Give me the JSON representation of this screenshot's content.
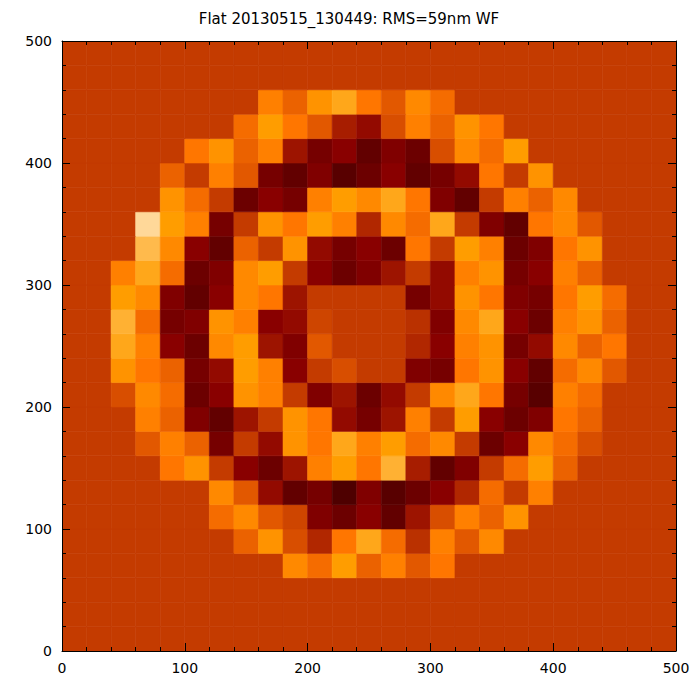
{
  "chart_data": {
    "type": "heatmap",
    "title": "Flat 20130515_130449: RMS=59nm WF",
    "x": [
      10,
      30,
      50,
      70,
      90,
      110,
      130,
      150,
      170,
      190,
      210,
      230,
      250,
      270,
      290,
      310,
      330,
      350,
      370,
      390,
      410,
      430,
      450,
      470,
      490
    ],
    "y": [
      10,
      30,
      50,
      70,
      90,
      110,
      130,
      150,
      170,
      190,
      210,
      230,
      250,
      270,
      290,
      310,
      330,
      350,
      370,
      390,
      410,
      430,
      450,
      470,
      490
    ],
    "z": [
      [
        0,
        0,
        0,
        0,
        0,
        0,
        0,
        0,
        0,
        0,
        0,
        0,
        0,
        0,
        0,
        0,
        0,
        0,
        0,
        0,
        0,
        0,
        0,
        0,
        0
      ],
      [
        0,
        0,
        0,
        0,
        0,
        0,
        0,
        0,
        0,
        0,
        0,
        0,
        0,
        0,
        0,
        0,
        0,
        0,
        0,
        0,
        0,
        0,
        0,
        0,
        0
      ],
      [
        0,
        0,
        0,
        0,
        0,
        0,
        0,
        0,
        0,
        0,
        0,
        0,
        0,
        0,
        0,
        0,
        0,
        0,
        0,
        0,
        0,
        0,
        0,
        0,
        0
      ],
      [
        0,
        0,
        0,
        0,
        0,
        0,
        0,
        0,
        0,
        40,
        25,
        50,
        20,
        35,
        15,
        30,
        0,
        0,
        0,
        0,
        0,
        0,
        0,
        0,
        0
      ],
      [
        0,
        0,
        0,
        0,
        0,
        0,
        0,
        20,
        45,
        10,
        -10,
        30,
        55,
        25,
        -5,
        35,
        15,
        40,
        0,
        0,
        0,
        0,
        0,
        0,
        0
      ],
      [
        0,
        0,
        0,
        0,
        0,
        0,
        25,
        40,
        15,
        5,
        -35,
        -45,
        -30,
        -50,
        -20,
        10,
        35,
        20,
        45,
        0,
        0,
        0,
        0,
        0,
        0
      ],
      [
        0,
        0,
        0,
        0,
        0,
        0,
        40,
        15,
        -25,
        -50,
        -40,
        -60,
        -35,
        -55,
        -45,
        -30,
        -10,
        25,
        0,
        35,
        0,
        0,
        0,
        0,
        0
      ],
      [
        0,
        0,
        0,
        0,
        30,
        45,
        0,
        -30,
        -45,
        -20,
        35,
        50,
        30,
        60,
        -15,
        -50,
        -35,
        0,
        25,
        50,
        20,
        0,
        0,
        0,
        0
      ],
      [
        0,
        0,
        0,
        15,
        35,
        20,
        -40,
        0,
        -25,
        45,
        30,
        55,
        35,
        50,
        25,
        40,
        0,
        -45,
        -30,
        40,
        25,
        10,
        0,
        0,
        0
      ],
      [
        0,
        0,
        0,
        35,
        20,
        -35,
        -50,
        -20,
        0,
        45,
        30,
        -25,
        -40,
        -20,
        35,
        0,
        50,
        -30,
        -45,
        -35,
        30,
        20,
        0,
        0,
        0
      ],
      [
        0,
        0,
        10,
        40,
        25,
        -45,
        -30,
        45,
        35,
        0,
        -35,
        -20,
        -45,
        -25,
        0,
        40,
        55,
        30,
        -40,
        -55,
        35,
        25,
        0,
        0,
        0
      ],
      [
        0,
        0,
        45,
        30,
        20,
        -40,
        -25,
        50,
        35,
        -30,
        0,
        10,
        0,
        0,
        -35,
        -40,
        30,
        45,
        -30,
        -50,
        25,
        40,
        15,
        0,
        0
      ],
      [
        0,
        0,
        55,
        35,
        -30,
        -45,
        40,
        50,
        -20,
        -35,
        15,
        0,
        0,
        0,
        -10,
        -30,
        35,
        45,
        -40,
        -25,
        40,
        20,
        30,
        0,
        0
      ],
      [
        0,
        0,
        60,
        25,
        -40,
        -35,
        45,
        35,
        -30,
        -25,
        5,
        0,
        0,
        0,
        -5,
        -35,
        40,
        55,
        -30,
        -45,
        35,
        45,
        20,
        0,
        0
      ],
      [
        0,
        0,
        50,
        40,
        -35,
        -50,
        -30,
        40,
        30,
        -20,
        0,
        0,
        0,
        0,
        -40,
        -25,
        45,
        30,
        -35,
        -40,
        30,
        50,
        25,
        0,
        0
      ],
      [
        0,
        0,
        35,
        55,
        25,
        -45,
        -35,
        40,
        50,
        0,
        -30,
        -45,
        -35,
        -20,
        0,
        -25,
        35,
        45,
        -40,
        -30,
        35,
        20,
        0,
        0,
        0
      ],
      [
        0,
        0,
        0,
        65,
        40,
        -30,
        -50,
        20,
        0,
        45,
        -25,
        -40,
        -30,
        -45,
        30,
        0,
        50,
        35,
        -45,
        -35,
        30,
        45,
        0,
        0,
        0
      ],
      [
        0,
        0,
        0,
        80,
        50,
        35,
        -40,
        0,
        45,
        30,
        50,
        35,
        -10,
        40,
        25,
        55,
        0,
        -35,
        -50,
        30,
        40,
        15,
        0,
        0,
        0
      ],
      [
        0,
        0,
        0,
        0,
        45,
        25,
        0,
        -45,
        -30,
        -40,
        35,
        50,
        40,
        55,
        30,
        -35,
        -50,
        0,
        35,
        20,
        40,
        0,
        0,
        0,
        0
      ],
      [
        0,
        0,
        0,
        0,
        20,
        0,
        35,
        15,
        -40,
        -50,
        -35,
        -55,
        -45,
        -30,
        -50,
        -40,
        -25,
        30,
        0,
        45,
        0,
        0,
        0,
        0,
        0
      ],
      [
        0,
        0,
        0,
        0,
        0,
        30,
        45,
        20,
        35,
        -20,
        -40,
        -30,
        -50,
        -35,
        -45,
        10,
        40,
        25,
        50,
        0,
        0,
        0,
        0,
        0,
        0
      ],
      [
        0,
        0,
        0,
        0,
        0,
        0,
        0,
        25,
        50,
        30,
        15,
        -15,
        -25,
        10,
        35,
        20,
        45,
        30,
        0,
        0,
        0,
        0,
        0,
        0,
        0
      ],
      [
        0,
        0,
        0,
        0,
        0,
        0,
        0,
        0,
        35,
        20,
        45,
        55,
        30,
        15,
        40,
        25,
        0,
        0,
        0,
        0,
        0,
        0,
        0,
        0,
        0
      ],
      [
        0,
        0,
        0,
        0,
        0,
        0,
        0,
        0,
        0,
        0,
        0,
        0,
        0,
        0,
        0,
        0,
        0,
        0,
        0,
        0,
        0,
        0,
        0,
        0,
        0
      ],
      [
        0,
        0,
        0,
        0,
        0,
        0,
        0,
        0,
        0,
        0,
        0,
        0,
        0,
        0,
        0,
        0,
        0,
        0,
        0,
        0,
        0,
        0,
        0,
        0,
        0
      ]
    ],
    "zlim": [
      -100,
      100
    ],
    "xlim": [
      0,
      500
    ],
    "ylim": [
      0,
      500
    ],
    "xticks": [
      0,
      100,
      200,
      300,
      400,
      500
    ],
    "yticks": [
      0,
      100,
      200,
      300,
      400,
      500
    ],
    "grid": false
  }
}
